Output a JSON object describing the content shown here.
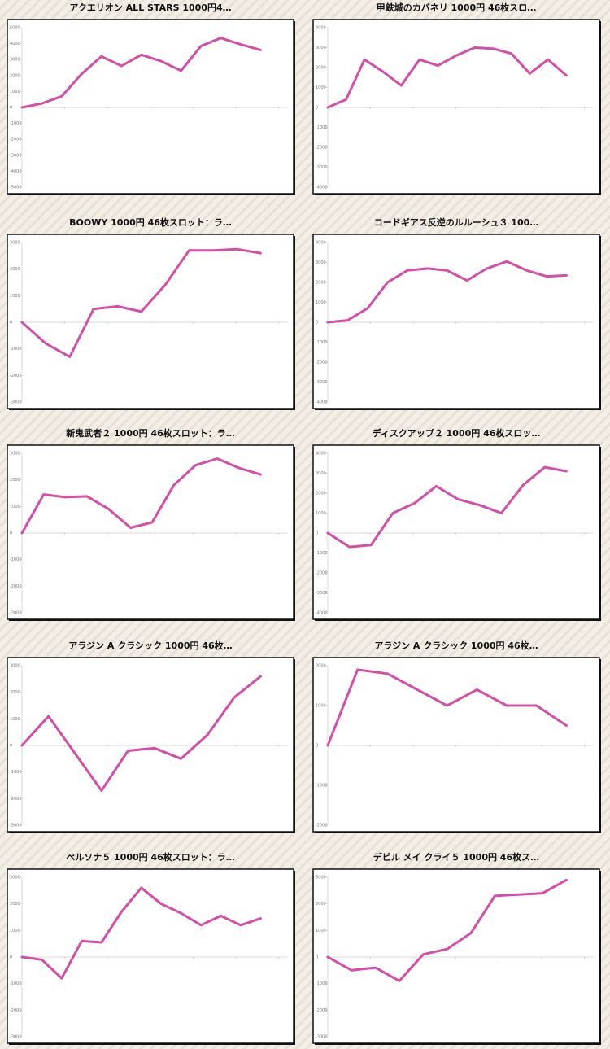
{
  "chart_data": [
    {
      "type": "line",
      "title": "アクエリオン ALL STARS 1000円4…",
      "color": "#d34fa6",
      "values": [
        0,
        250,
        700,
        2100,
        3200,
        2600,
        3300,
        2900,
        2300,
        3850,
        4350,
        3950,
        3600
      ],
      "ylim": [
        -5000,
        5000
      ],
      "yticks": [
        5000,
        4000,
        3000,
        2000,
        1000,
        0,
        -1000,
        -2000,
        -3000,
        -4000,
        -5000
      ]
    },
    {
      "type": "line",
      "title": "甲鉄城のカバネリ 1000円 46枚スロ…",
      "color": "#d34fa6",
      "values": [
        0,
        400,
        2400,
        1800,
        1100,
        2400,
        2100,
        2600,
        3000,
        2950,
        2700,
        1700,
        2400,
        1600
      ],
      "ylim": [
        -4000,
        4000
      ],
      "yticks": [
        4000,
        3000,
        2000,
        1000,
        0,
        -1000,
        -2000,
        -3000,
        -4000
      ]
    },
    {
      "type": "line",
      "title": "BOOWY 1000円 46枚スロット：ラ…",
      "color": "#d34fa6",
      "values": [
        0,
        -800,
        -1300,
        500,
        600,
        400,
        1400,
        2700,
        2700,
        2750,
        2600
      ],
      "ylim": [
        -3000,
        3000
      ],
      "yticks": [
        3000,
        2000,
        1000,
        0,
        -1000,
        -2000,
        -3000
      ]
    },
    {
      "type": "line",
      "title": "コードギアス反逆のルルーシュ３ 100…",
      "color": "#d34fa6",
      "values": [
        0,
        100,
        700,
        2000,
        2600,
        2700,
        2600,
        2100,
        2700,
        3050,
        2600,
        2300,
        2350
      ],
      "ylim": [
        -4000,
        4000
      ],
      "yticks": [
        4000,
        3000,
        2000,
        1000,
        0,
        -1000,
        -2000,
        -3000,
        -4000
      ]
    },
    {
      "type": "line",
      "title": "新鬼武者２ 1000円 46枚スロット：ラ…",
      "color": "#d34fa6",
      "values": [
        0,
        1450,
        1350,
        1380,
        900,
        200,
        400,
        1800,
        2550,
        2800,
        2450,
        2200
      ],
      "ylim": [
        -3000,
        3000
      ],
      "yticks": [
        3000,
        2000,
        1000,
        0,
        -1000,
        -2000,
        -3000
      ]
    },
    {
      "type": "line",
      "title": "ディスクアップ２ 1000円 46枚スロッ…",
      "color": "#d34fa6",
      "values": [
        0,
        -700,
        -600,
        1000,
        1500,
        2350,
        1700,
        1400,
        1000,
        2400,
        3300,
        3100
      ],
      "ylim": [
        -4000,
        4000
      ],
      "yticks": [
        4000,
        3000,
        2000,
        1000,
        0,
        -1000,
        -2000,
        -3000,
        -4000
      ]
    },
    {
      "type": "line",
      "title": "アラジン A クラシック 1000円 46枚…",
      "color": "#d34fa6",
      "values": [
        0,
        1100,
        -300,
        -1700,
        -200,
        -100,
        -500,
        400,
        1800,
        2600
      ],
      "ylim": [
        -3000,
        3000
      ],
      "yticks": [
        3000,
        2000,
        1000,
        0,
        -1000,
        -2000,
        -3000
      ]
    },
    {
      "type": "line",
      "title": "アラジン A クラシック 1000円 46枚…",
      "color": "#d34fa6",
      "values": [
        0,
        1900,
        1800,
        1400,
        1000,
        1400,
        1000,
        1000,
        500
      ],
      "ylim": [
        -2000,
        2000
      ],
      "yticks": [
        2000,
        1000,
        0,
        -1000,
        -2000
      ]
    },
    {
      "type": "line",
      "title": "ペルソナ５ 1000円 46枚スロット：ラ…",
      "color": "#d34fa6",
      "values": [
        0,
        -100,
        -800,
        600,
        550,
        1700,
        2600,
        2000,
        1650,
        1200,
        1550,
        1200,
        1450
      ],
      "ylim": [
        -3000,
        3000
      ],
      "yticks": [
        3000,
        2000,
        1000,
        0,
        -1000,
        -2000,
        -3000
      ]
    },
    {
      "type": "line",
      "title": "デビル メイ クライ５ 1000円 46枚ス…",
      "color": "#d34fa6",
      "values": [
        0,
        -500,
        -400,
        -900,
        100,
        300,
        900,
        2300,
        2350,
        2400,
        2900
      ],
      "ylim": [
        -3000,
        3000
      ],
      "yticks": [
        3000,
        2000,
        1000,
        0,
        -1000,
        -2000,
        -3000
      ]
    }
  ]
}
